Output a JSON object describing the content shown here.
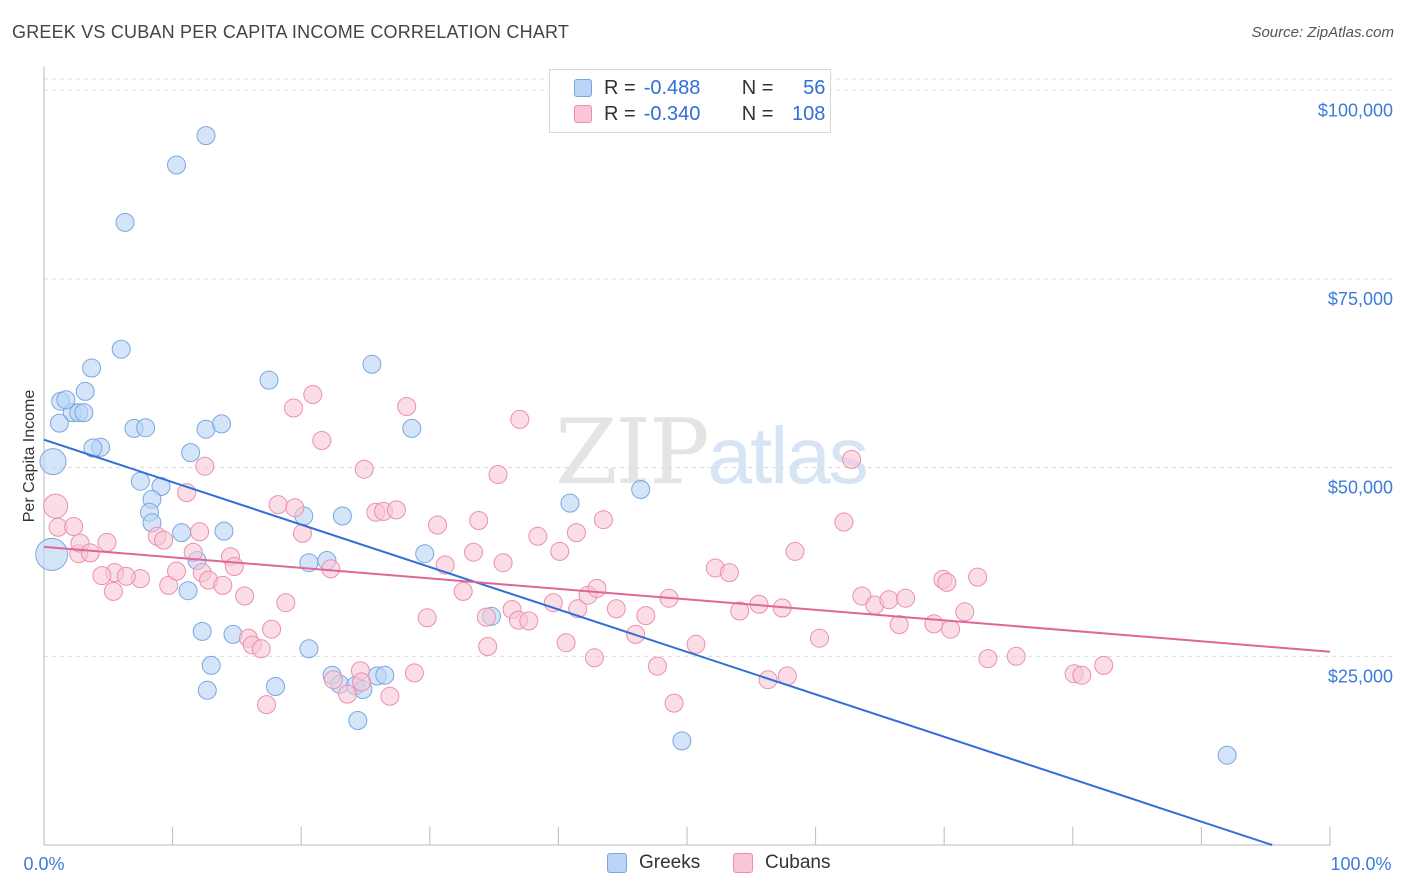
{
  "title": "GREEK VS CUBAN PER CAPITA INCOME CORRELATION CHART",
  "source": "Source: ZipAtlas.com",
  "watermark": {
    "zip": "ZIP",
    "atlas": "atlas"
  },
  "legend": {
    "rows": [
      {
        "r_label": "R =",
        "r_value": "-0.488",
        "n_label": "N =",
        "n_value": "56",
        "color": "#b9d4f5",
        "border": "#7aa7e0"
      },
      {
        "r_label": "R =",
        "r_value": "-0.340",
        "n_label": "N =",
        "n_value": "108",
        "color": "#f9c6d6",
        "border": "#ec8fb0"
      }
    ]
  },
  "bottom_legend": {
    "greeks": "Greeks",
    "cubans": "Cubans"
  },
  "chart_data": {
    "type": "scatter",
    "ylabel": "Per Capita Income",
    "xlim": [
      0,
      100
    ],
    "ylim": [
      0,
      100000
    ],
    "x_tick_labels": {
      "left": "0.0%",
      "right": "100.0%"
    },
    "y_ticks": [
      {
        "value": 100000,
        "label": "$100,000"
      },
      {
        "value": 75000,
        "label": "$75,000"
      },
      {
        "value": 50000,
        "label": "$50,000"
      },
      {
        "value": 25000,
        "label": "$25,000"
      }
    ],
    "grid": true,
    "series": [
      {
        "name": "Greeks",
        "color": "#7aa7e0",
        "fill": "#b9d4f5",
        "trend_color": "#2f6fd6",
        "trend": {
          "x0": 0,
          "y0": 53700,
          "x1": 95.5,
          "y1": 0
        },
        "points": [
          [
            0.6,
            38500
          ],
          [
            1.3,
            58800
          ],
          [
            2.2,
            57300
          ],
          [
            0.7,
            50800
          ],
          [
            1.7,
            59000
          ],
          [
            3.2,
            60100
          ],
          [
            3.7,
            63200
          ],
          [
            6.0,
            65700
          ],
          [
            4.4,
            52700
          ],
          [
            1.2,
            55900
          ],
          [
            3.8,
            52600
          ],
          [
            2.7,
            57300
          ],
          [
            3.1,
            57300
          ],
          [
            6.3,
            82500
          ],
          [
            10.3,
            90100
          ],
          [
            12.6,
            94000
          ],
          [
            7.0,
            55200
          ],
          [
            7.9,
            55300
          ],
          [
            7.5,
            48200
          ],
          [
            9.1,
            47500
          ],
          [
            8.4,
            45800
          ],
          [
            8.2,
            44100
          ],
          [
            8.4,
            42700
          ],
          [
            10.7,
            41400
          ],
          [
            11.4,
            52000
          ],
          [
            11.9,
            37700
          ],
          [
            12.6,
            55100
          ],
          [
            13.8,
            55800
          ],
          [
            11.2,
            33700
          ],
          [
            14.0,
            41600
          ],
          [
            14.7,
            27900
          ],
          [
            12.3,
            28300
          ],
          [
            13.0,
            23800
          ],
          [
            12.7,
            20500
          ],
          [
            17.5,
            61600
          ],
          [
            18.0,
            21000
          ],
          [
            20.6,
            26000
          ],
          [
            20.2,
            43600
          ],
          [
            20.6,
            37400
          ],
          [
            22.0,
            37700
          ],
          [
            22.4,
            22500
          ],
          [
            23.0,
            21300
          ],
          [
            24.2,
            21100
          ],
          [
            23.2,
            43600
          ],
          [
            25.5,
            63700
          ],
          [
            25.9,
            22400
          ],
          [
            26.5,
            22500
          ],
          [
            24.4,
            16500
          ],
          [
            28.6,
            55200
          ],
          [
            29.6,
            38600
          ],
          [
            24.8,
            20600
          ],
          [
            34.8,
            30300
          ],
          [
            40.9,
            45300
          ],
          [
            46.4,
            47100
          ],
          [
            49.6,
            13800
          ],
          [
            92.0,
            11900
          ]
        ]
      },
      {
        "name": "Cubans",
        "color": "#ec8fb0",
        "fill": "#f9c6d6",
        "trend_color": "#e0659a",
        "trend": {
          "x0": 0,
          "y0": 39500,
          "x1": 100,
          "y1": 25600
        },
        "points": [
          [
            0.9,
            44900
          ],
          [
            1.1,
            42100
          ],
          [
            2.3,
            42200
          ],
          [
            2.7,
            38600
          ],
          [
            2.8,
            40000
          ],
          [
            3.6,
            38700
          ],
          [
            4.9,
            40100
          ],
          [
            5.5,
            36100
          ],
          [
            4.5,
            35700
          ],
          [
            5.4,
            33600
          ],
          [
            7.5,
            35300
          ],
          [
            6.4,
            35600
          ],
          [
            8.8,
            40900
          ],
          [
            9.3,
            40400
          ],
          [
            9.7,
            34400
          ],
          [
            10.3,
            36300
          ],
          [
            11.1,
            46700
          ],
          [
            12.5,
            50200
          ],
          [
            12.1,
            41500
          ],
          [
            12.3,
            36100
          ],
          [
            12.8,
            35100
          ],
          [
            11.6,
            38800
          ],
          [
            13.9,
            34400
          ],
          [
            14.5,
            38200
          ],
          [
            14.8,
            36900
          ],
          [
            15.6,
            33000
          ],
          [
            15.9,
            27400
          ],
          [
            16.2,
            26500
          ],
          [
            16.9,
            26000
          ],
          [
            17.3,
            18600
          ],
          [
            17.7,
            28600
          ],
          [
            18.2,
            45100
          ],
          [
            18.8,
            32100
          ],
          [
            19.5,
            44700
          ],
          [
            19.4,
            57900
          ],
          [
            20.1,
            41300
          ],
          [
            20.9,
            59700
          ],
          [
            21.6,
            53600
          ],
          [
            22.3,
            36600
          ],
          [
            22.5,
            21900
          ],
          [
            23.6,
            20000
          ],
          [
            24.6,
            23100
          ],
          [
            24.7,
            21600
          ],
          [
            24.9,
            49800
          ],
          [
            25.8,
            44100
          ],
          [
            26.4,
            44200
          ],
          [
            26.9,
            19700
          ],
          [
            27.4,
            44400
          ],
          [
            28.2,
            58100
          ],
          [
            28.8,
            22800
          ],
          [
            29.8,
            30100
          ],
          [
            30.6,
            42400
          ],
          [
            31.2,
            37100
          ],
          [
            32.6,
            33600
          ],
          [
            33.4,
            38800
          ],
          [
            33.8,
            43000
          ],
          [
            34.4,
            30200
          ],
          [
            34.5,
            26300
          ],
          [
            35.3,
            49100
          ],
          [
            35.7,
            37400
          ],
          [
            36.4,
            31200
          ],
          [
            36.9,
            29800
          ],
          [
            37.7,
            29700
          ],
          [
            38.4,
            40900
          ],
          [
            37.0,
            56400
          ],
          [
            39.6,
            32100
          ],
          [
            40.6,
            26800
          ],
          [
            40.1,
            38900
          ],
          [
            41.5,
            31300
          ],
          [
            41.4,
            41400
          ],
          [
            42.3,
            33100
          ],
          [
            42.8,
            24800
          ],
          [
            43.0,
            34000
          ],
          [
            43.5,
            43100
          ],
          [
            44.5,
            31300
          ],
          [
            46.0,
            27900
          ],
          [
            46.8,
            30400
          ],
          [
            47.7,
            23700
          ],
          [
            48.6,
            32700
          ],
          [
            49.0,
            18800
          ],
          [
            50.7,
            26600
          ],
          [
            52.2,
            36700
          ],
          [
            53.3,
            36100
          ],
          [
            54.1,
            31000
          ],
          [
            55.6,
            31900
          ],
          [
            56.3,
            21900
          ],
          [
            57.4,
            31400
          ],
          [
            58.4,
            38900
          ],
          [
            60.3,
            27400
          ],
          [
            62.2,
            42800
          ],
          [
            62.8,
            51100
          ],
          [
            63.6,
            33000
          ],
          [
            64.6,
            31800
          ],
          [
            65.7,
            32500
          ],
          [
            66.5,
            29200
          ],
          [
            67.0,
            32700
          ],
          [
            69.2,
            29300
          ],
          [
            69.9,
            35200
          ],
          [
            70.5,
            28600
          ],
          [
            71.6,
            30900
          ],
          [
            72.6,
            35500
          ],
          [
            70.2,
            34800
          ],
          [
            73.4,
            24700
          ],
          [
            75.6,
            25000
          ],
          [
            80.1,
            22700
          ],
          [
            80.7,
            22500
          ],
          [
            82.4,
            23800
          ],
          [
            57.8,
            22400
          ]
        ]
      }
    ]
  }
}
